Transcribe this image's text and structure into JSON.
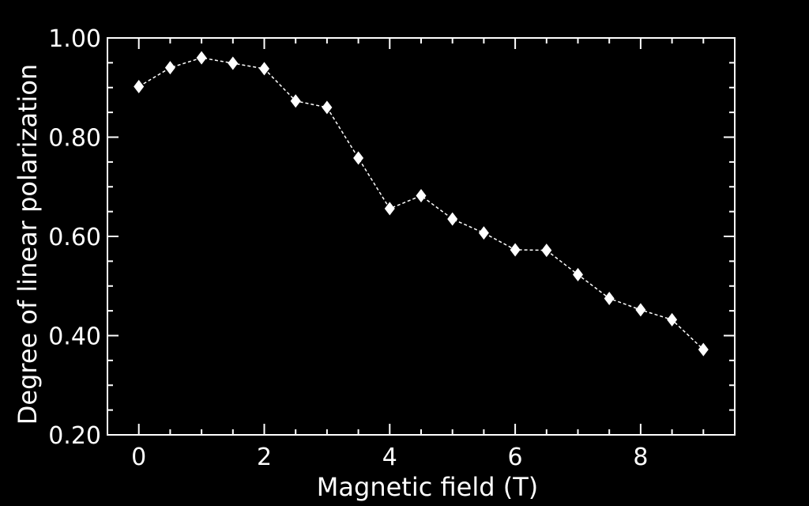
{
  "chart_data": {
    "type": "line",
    "title": "",
    "xlabel": "Magnetic field (T)",
    "ylabel": "Degree of linear polarization",
    "xlim": [
      -0.5,
      9.5
    ],
    "ylim": [
      0.2,
      1.0
    ],
    "x_ticks": [
      0,
      2,
      4,
      6,
      8
    ],
    "x_tick_labels": [
      "0",
      "2",
      "4",
      "6",
      "8"
    ],
    "y_ticks": [
      0.2,
      0.4,
      0.6,
      0.8,
      1.0
    ],
    "y_tick_labels": [
      "0.20",
      "0.40",
      "0.60",
      "0.80",
      "1.00"
    ],
    "grid": false,
    "colors": {
      "background": "#000000",
      "foreground": "#ffffff"
    },
    "line_style": "dashed",
    "marker": "diamond",
    "series": [
      {
        "x": [
          0,
          0.5,
          1,
          1.5,
          2,
          2.5,
          3,
          3.5,
          4,
          4.5,
          5,
          5.5,
          6,
          6.5,
          7,
          7.5,
          8,
          8.5,
          9
        ],
        "y": [
          0.902,
          0.94,
          0.96,
          0.949,
          0.938,
          0.873,
          0.86,
          0.758,
          0.656,
          0.682,
          0.635,
          0.607,
          0.573,
          0.572,
          0.523,
          0.475,
          0.452,
          0.432,
          0.372
        ]
      }
    ]
  }
}
